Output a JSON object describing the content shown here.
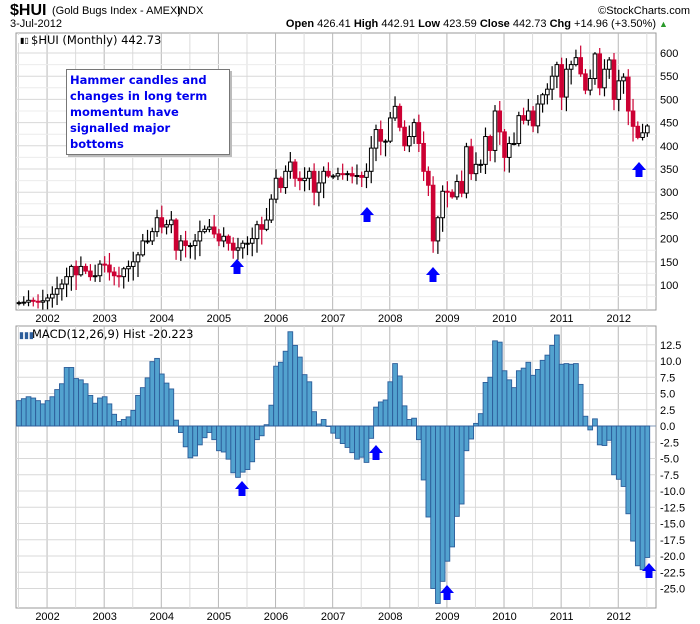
{
  "header": {
    "symbol": "$HUI",
    "name": "(Gold Bugs Index - AMEX)",
    "exchange": "INDX",
    "credit": "©StockCharts.com",
    "date": "3-Jul-2012",
    "open_label": "Open",
    "open": "426.41",
    "high_label": "High",
    "high": "442.91",
    "low_label": "Low",
    "low": "423.59",
    "close_label": "Close",
    "close": "442.73",
    "chg_label": "Chg",
    "chg": "+14.96 (+3.50%)",
    "chg_arrow": "▲"
  },
  "price_panel": {
    "legend": "$HUI (Monthly) 442.73"
  },
  "macd_panel": {
    "legend": "MACD(12,26,9) Hist -20.223"
  },
  "annotation": {
    "text": "Hammer candles and changes in long term momentum have signalled major bottoms"
  },
  "colors": {
    "up": "#000000",
    "down": "#cc0033",
    "hist_fill": "#52a2cf",
    "hist_stroke": "#2c5d9a",
    "arrow": "#0000ff",
    "grid": "#d0d0d0"
  },
  "chart_data": [
    {
      "type": "candlestick",
      "title": "$HUI (Monthly)",
      "start_month": "2001-07",
      "interval": "monthly",
      "closes": [
        62,
        63,
        67,
        65,
        63,
        66,
        72,
        80,
        92,
        102,
        118,
        140,
        122,
        140,
        130,
        118,
        120,
        145,
        143,
        128,
        120,
        118,
        135,
        140,
        150,
        165,
        195,
        195,
        215,
        245,
        225,
        230,
        240,
        175,
        195,
        185,
        185,
        195,
        215,
        220,
        225,
        210,
        195,
        205,
        190,
        175,
        180,
        190,
        190,
        200,
        230,
        220,
        240,
        285,
        330,
        310,
        345,
        365,
        330,
        325,
        330,
        345,
        300,
        320,
        345,
        335,
        335,
        340,
        338,
        340,
        335,
        336,
        332,
        345,
        395,
        435,
        410,
        410,
        460,
        485,
        440,
        400,
        420,
        450,
        405,
        345,
        315,
        195,
        245,
        302,
        300,
        290,
        323,
        298,
        398,
        340,
        360,
        360,
        420,
        390,
        475,
        430,
        375,
        405,
        405,
        465,
        455,
        475,
        443,
        490,
        510,
        522,
        550,
        575,
        505,
        565,
        575,
        590,
        555,
        520,
        545,
        598,
        525,
        565,
        585,
        500,
        540,
        548,
        475,
        442,
        418,
        428,
        442.73
      ],
      "y_ticks": [
        "600",
        "550",
        "500",
        "450",
        "400",
        "350",
        "300",
        "250",
        "200",
        "150",
        "100"
      ],
      "ylim": [
        50,
        640
      ]
    },
    {
      "type": "bar",
      "title": "MACD(12,26,9) Hist",
      "start_month": "2001-07",
      "values": [
        3.9,
        4.2,
        4.5,
        4.3,
        3.9,
        3.4,
        3.9,
        4.5,
        5.6,
        6.5,
        9.0,
        9.0,
        7.3,
        7.1,
        6.5,
        4.7,
        3.5,
        4.3,
        4.5,
        3.4,
        1.8,
        0.7,
        1.0,
        1.4,
        2.4,
        4.7,
        5.9,
        7.4,
        9.9,
        10.4,
        8.0,
        6.6,
        5.7,
        0.9,
        -1.0,
        -3.2,
        -4.9,
        -4.6,
        -2.9,
        -1.8,
        -1.0,
        -2.1,
        -3.8,
        -4.0,
        -5.1,
        -7.2,
        -7.9,
        -7.1,
        -6.7,
        -5.5,
        -2.1,
        -1.5,
        0.2,
        3.2,
        9.2,
        9.8,
        11.5,
        14.5,
        12.4,
        10.6,
        7.9,
        6.8,
        2.2,
        0.3,
        1.0,
        0,
        -1.1,
        -1.9,
        -2.7,
        -3.3,
        -4.1,
        -5.1,
        -4.8,
        -5.6,
        -1.9,
        2.9,
        3.7,
        4.0,
        6.8,
        9.6,
        7.7,
        3.1,
        1.0,
        1.2,
        -2.1,
        -8.3,
        -14.0,
        -25.0,
        -27.3,
        -23.9,
        -20.8,
        -18.6,
        -13.9,
        -12.0,
        -3.8,
        -2.0,
        0.4,
        1.9,
        6.7,
        7.5,
        13.1,
        12.9,
        8.5,
        7.1,
        5.9,
        8.5,
        8.9,
        9.8,
        7.8,
        8.7,
        10.1,
        10.9,
        12.4,
        14.0,
        9.5,
        9.6,
        9.5,
        9.6,
        6.4,
        1.5,
        -0.6,
        1.1,
        -2.9,
        -3.0,
        -2.2,
        -7.5,
        -8.2,
        -9.3,
        -13.5,
        -17.7,
        -21.5,
        -22.1,
        -20.223
      ],
      "y_ticks": [
        "12.5",
        "10.0",
        "7.5",
        "5.0",
        "2.5",
        "0.0",
        "-2.5",
        "-5.0",
        "-7.5",
        "-10.0",
        "-12.5",
        "-15.0",
        "-17.5",
        "-20.0",
        "-22.5",
        "-25.0"
      ],
      "ylim": [
        -28,
        15
      ]
    }
  ],
  "x_ticks": [
    "2002",
    "2003",
    "2004",
    "2005",
    "2006",
    "2007",
    "2008",
    "2009",
    "2010",
    "2011",
    "2012"
  ]
}
